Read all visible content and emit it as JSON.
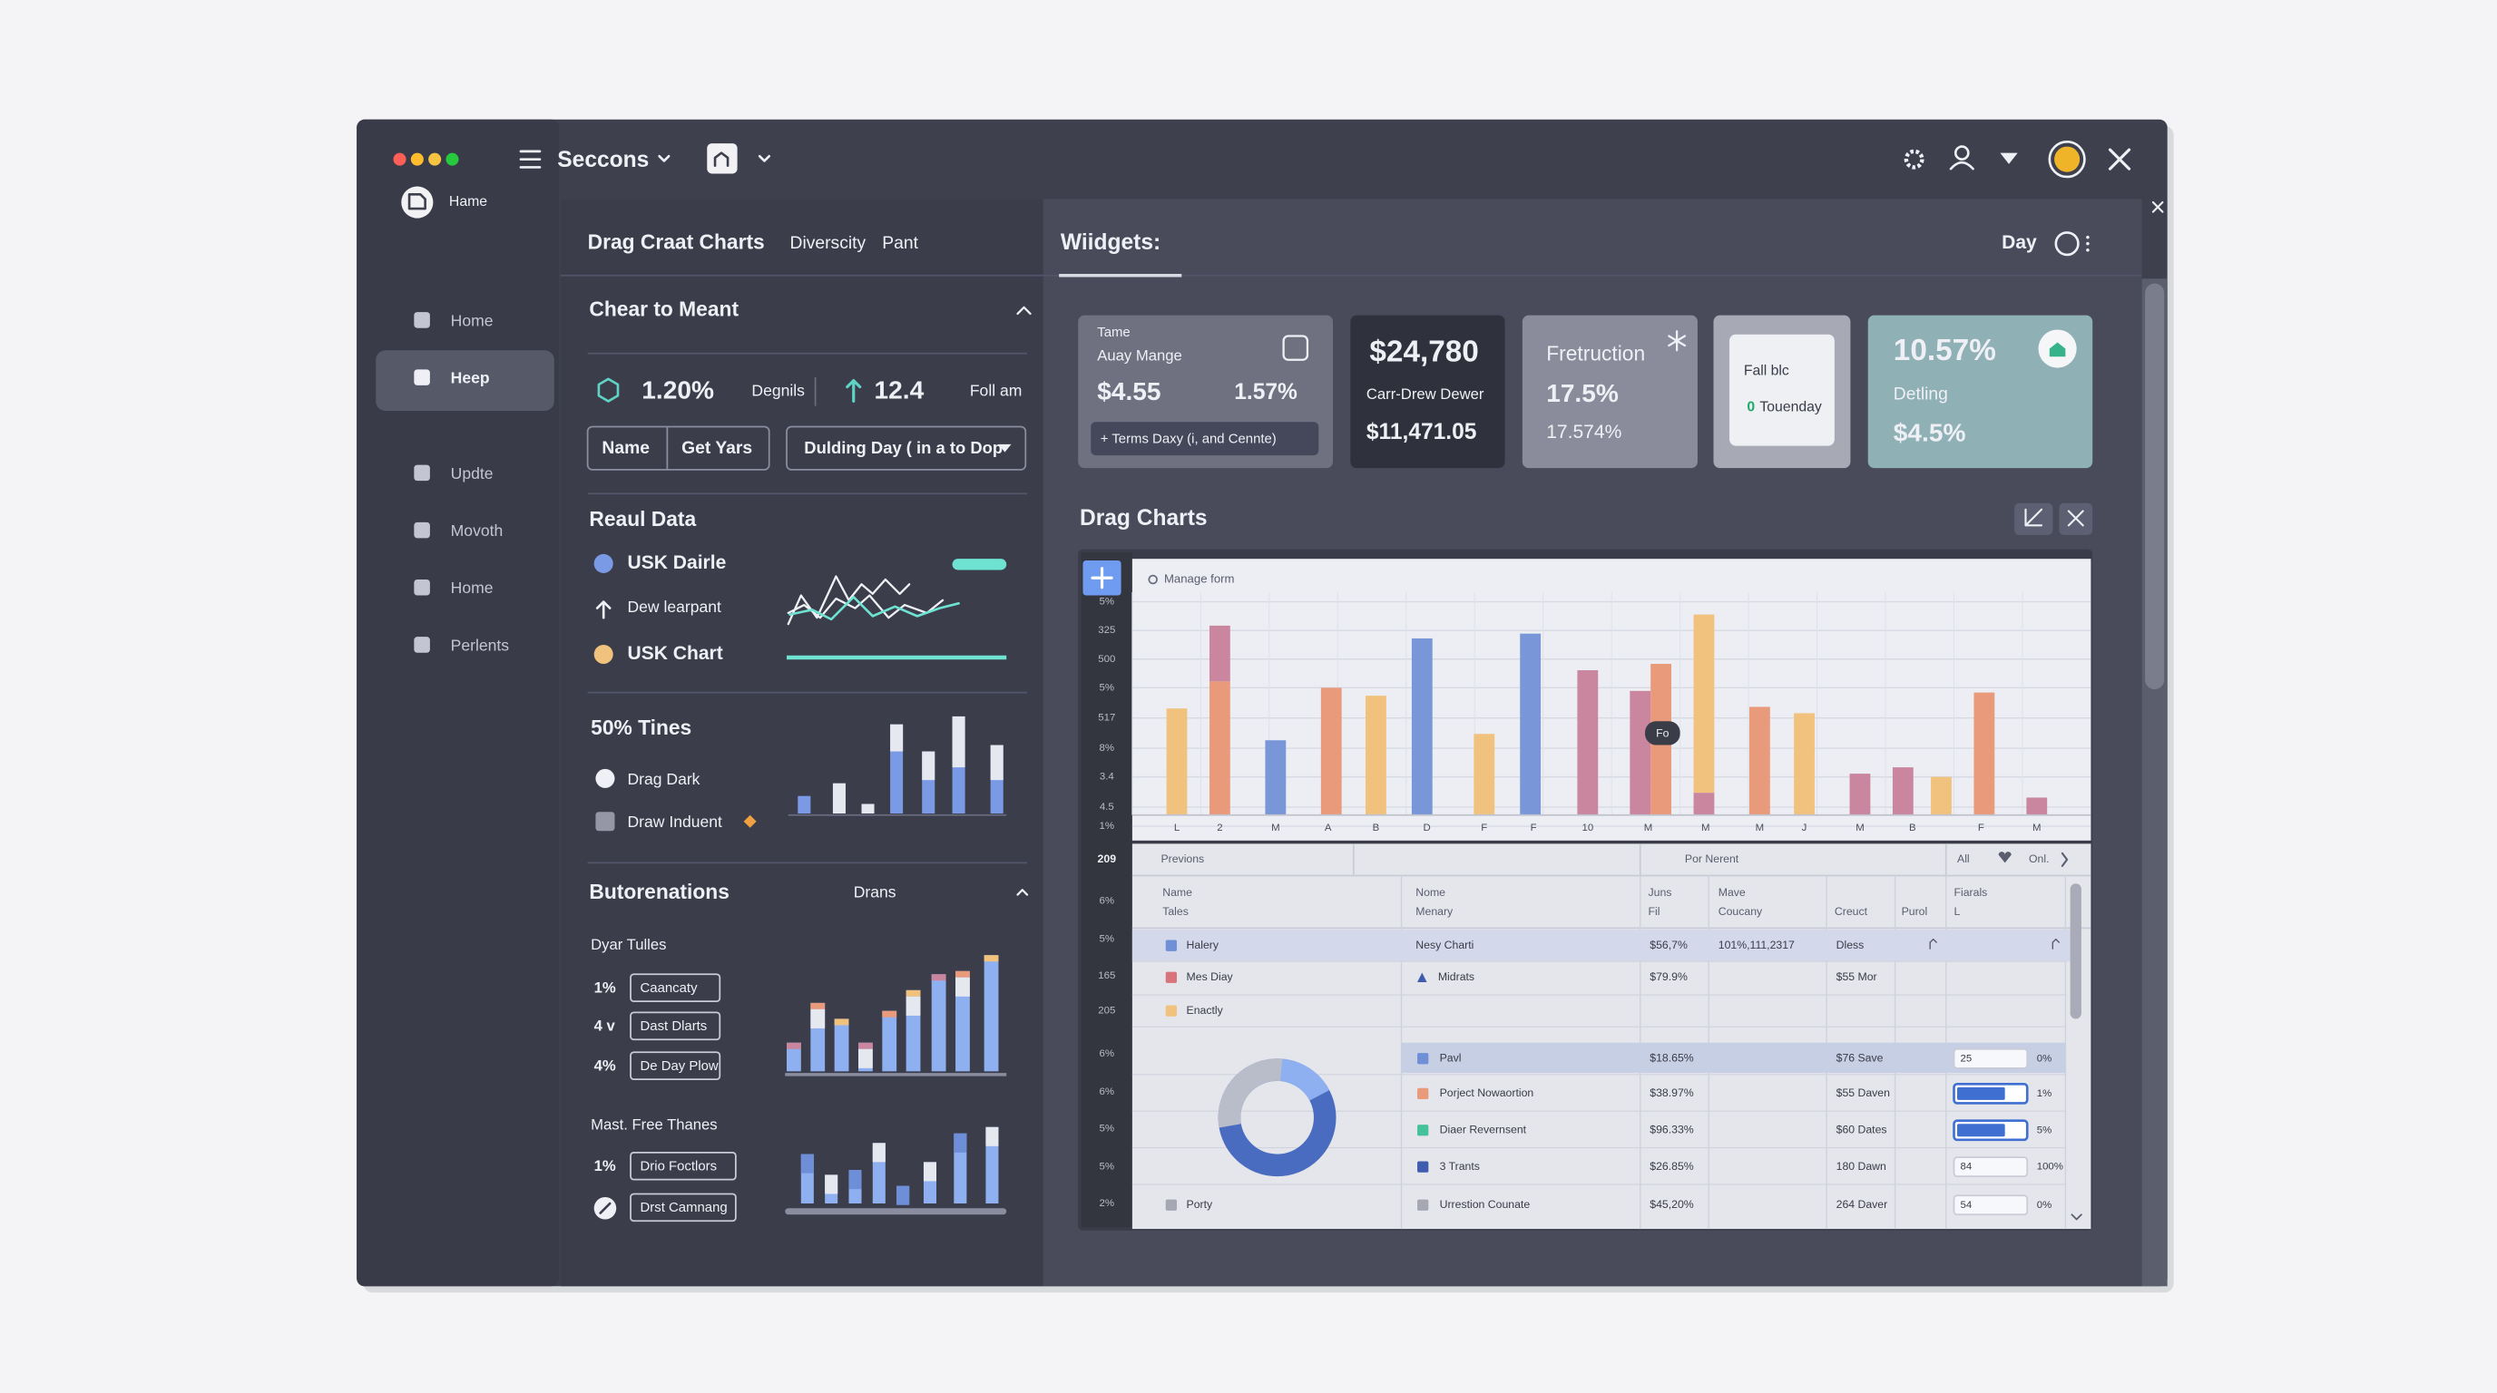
{
  "window": {
    "title": "Seccons",
    "home": "Hame"
  },
  "sidebar": [
    "Home",
    "Heep",
    "Updte",
    "Movoth",
    "Home",
    "Perlents"
  ],
  "tabs": {
    "items": [
      "Drag Craat Charts",
      "Diverscity",
      "Pant"
    ],
    "widgets": "Wiidgets:",
    "period": "Day"
  },
  "panel": {
    "header": "Chear to Meant",
    "stat_a": "1.20%",
    "stat_a_label": "Degnils",
    "stat_b": "12.4",
    "stat_b_label": "Foll am",
    "filters": [
      "Name",
      "Get Yars",
      "Dulding Day ( in a to Dop"
    ],
    "real_data": {
      "title": "Reaul Data",
      "items": [
        "USK Dairle",
        "Dew learpant",
        "USK Chart"
      ]
    },
    "times": {
      "title": "50% Tines",
      "items": [
        "Drag Dark",
        "Draw Induent"
      ]
    },
    "buttonations": {
      "title": "Butorenations",
      "tag": "Drans",
      "groups": [
        {
          "title": "Dyar Tulles",
          "rows": [
            {
              "prefix": "1%",
              "button": "Caancaty"
            },
            {
              "prefix": "4 v",
              "button": "Dast Dlarts"
            },
            {
              "prefix": "4%",
              "button": "De Day Plow"
            }
          ]
        },
        {
          "title": "Mast. Free Thanes",
          "rows": [
            {
              "prefix": "1%",
              "button": "Drio Foctlors"
            },
            {
              "button": "Drst Camnang"
            }
          ]
        }
      ]
    }
  },
  "cards": [
    {
      "caption": "Tame",
      "title": "Auay Mange",
      "value": "$4.55",
      "change": "1.57%",
      "action": "+ Terms Daxy (i, and Cennte)"
    },
    {
      "value": "$24,780",
      "title": "Carr-Drew Dewer",
      "sub_value": "$11,471.05"
    },
    {
      "title": "Fretruction",
      "value": "17.5%",
      "sub_value": "17.574%"
    },
    {
      "title": "Fall blc",
      "status": "0",
      "sub_value": "Touenday"
    },
    {
      "value": "10.57%",
      "title": "Detling",
      "sub_value": "$4.5%"
    }
  ],
  "charts": {
    "title": "Drag Charts",
    "manage": "Manage form",
    "y_labels": [
      "5%",
      "325",
      "500",
      "5%",
      "517",
      "8%",
      "3.4",
      "4.5",
      "1%"
    ],
    "x_labels": [
      "L",
      "2",
      "M",
      "A",
      "B",
      "D",
      "F",
      "F",
      "10",
      "M",
      "M",
      "M",
      "J",
      "M",
      "B",
      "F",
      "M"
    ],
    "tooltip": "Fo"
  },
  "table": {
    "count": "209",
    "prev": "Previons",
    "next": "Por Nerent",
    "filter": "All",
    "only": "Onl.",
    "columns": [
      [
        "Name",
        "Tales"
      ],
      [
        "Nome",
        "Menary"
      ],
      [
        "Juns",
        "Fil"
      ],
      [
        "Mave",
        "Coucany"
      ],
      [
        "Creuct"
      ],
      [
        "Purol"
      ],
      [
        "Fiarals",
        "L"
      ]
    ],
    "index": [
      "6%",
      "5%",
      "165",
      "205",
      "6%",
      "6%",
      "5%",
      "5%",
      "2%"
    ],
    "rows": [
      {
        "name": "Halery",
        "menary": "Nesy Charti",
        "fil": "$56,7%",
        "coucany": "101%,111,2317",
        "creuct": "Dless"
      },
      {
        "name": "Mes Diay",
        "menary": "Midrats",
        "fil": "$79.9%",
        "creuct": "$55 Mor"
      },
      {
        "name": "Enactly"
      },
      {
        "menary": "Pavl",
        "fil": "$18.65%",
        "creuct": "$76 Save",
        "input": "25",
        "fiarals": "0%"
      },
      {
        "menary": "Porject Nowaortion",
        "fil": "$38.97%",
        "creuct": "$55 Daven",
        "fiarals": "1%"
      },
      {
        "menary": "Diaer Revernsent",
        "fil": "$96.33%",
        "creuct": "$60 Dates",
        "fiarals": "5%"
      },
      {
        "menary": "3 Trants",
        "fil": "$26.85%",
        "creuct": "180 Dawn",
        "input": "84",
        "fiarals": "100%"
      },
      {
        "name": "Porty",
        "menary": "Urrestion Counate",
        "fil": "$45,20%",
        "creuct": "264 Daver",
        "input": "54",
        "fiarals": "0%"
      }
    ]
  }
}
